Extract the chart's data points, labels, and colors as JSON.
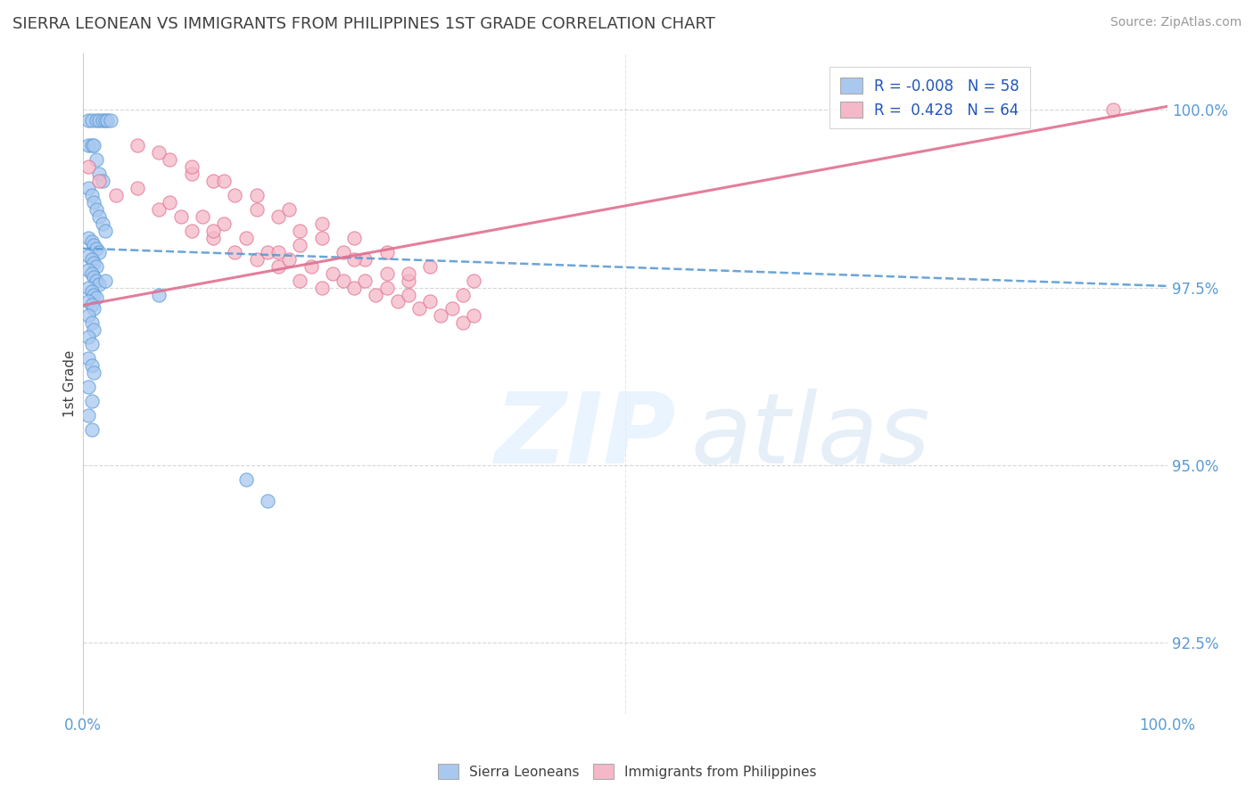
{
  "title": "SIERRA LEONEAN VS IMMIGRANTS FROM PHILIPPINES 1ST GRADE CORRELATION CHART",
  "source": "Source: ZipAtlas.com",
  "ylabel": "1st Grade",
  "xlim": [
    0.0,
    100.0
  ],
  "ylim": [
    91.5,
    100.8
  ],
  "yticks": [
    92.5,
    95.0,
    97.5,
    100.0
  ],
  "blue_R": "-0.008",
  "blue_N": "58",
  "pink_R": "0.428",
  "pink_N": "64",
  "blue_color": "#a8c8f0",
  "pink_color": "#f5b8c8",
  "blue_line_color": "#5b9bd5",
  "pink_line_color": "#e07090",
  "grid_color": "#cccccc",
  "title_color": "#404040",
  "axis_label_color": "#5b9bd5",
  "blue_line_y0": 98.05,
  "blue_line_y1": 97.52,
  "pink_line_y0": 97.25,
  "pink_line_y1": 100.05,
  "blue_scatter_x": [
    0.5,
    0.8,
    1.2,
    1.5,
    1.8,
    2.0,
    2.2,
    2.5,
    0.5,
    0.8,
    1.0,
    1.2,
    1.5,
    1.8,
    0.5,
    0.8,
    1.0,
    1.2,
    1.5,
    1.8,
    2.0,
    0.5,
    0.8,
    1.0,
    1.2,
    1.5,
    0.5,
    0.8,
    1.0,
    1.2,
    0.5,
    0.8,
    1.0,
    1.2,
    1.5,
    0.5,
    0.8,
    1.0,
    1.2,
    0.5,
    0.8,
    1.0,
    0.5,
    0.8,
    1.0,
    0.5,
    0.8,
    0.5,
    0.8,
    1.0,
    0.5,
    0.8,
    0.5,
    0.8,
    2.0,
    7.0,
    15.0,
    17.0
  ],
  "blue_scatter_y": [
    99.85,
    99.85,
    99.85,
    99.85,
    99.85,
    99.85,
    99.85,
    99.85,
    99.5,
    99.5,
    99.5,
    99.3,
    99.1,
    99.0,
    98.9,
    98.8,
    98.7,
    98.6,
    98.5,
    98.4,
    98.3,
    98.2,
    98.15,
    98.1,
    98.05,
    98.0,
    97.95,
    97.9,
    97.85,
    97.8,
    97.75,
    97.7,
    97.65,
    97.6,
    97.55,
    97.5,
    97.45,
    97.4,
    97.35,
    97.3,
    97.25,
    97.2,
    97.1,
    97.0,
    96.9,
    96.8,
    96.7,
    96.5,
    96.4,
    96.3,
    96.1,
    95.9,
    95.7,
    95.5,
    97.6,
    97.4,
    94.8,
    94.5
  ],
  "pink_scatter_x": [
    0.5,
    1.5,
    3.0,
    5.0,
    7.0,
    8.0,
    9.0,
    10.0,
    11.0,
    12.0,
    13.0,
    14.0,
    15.0,
    16.0,
    17.0,
    18.0,
    19.0,
    20.0,
    21.0,
    22.0,
    23.0,
    24.0,
    25.0,
    26.0,
    27.0,
    28.0,
    29.0,
    30.0,
    31.0,
    32.0,
    33.0,
    34.0,
    35.0,
    36.0,
    5.0,
    8.0,
    10.0,
    12.0,
    14.0,
    16.0,
    18.0,
    20.0,
    22.0,
    24.0,
    26.0,
    28.0,
    30.0,
    35.0,
    7.0,
    10.0,
    13.0,
    16.0,
    19.0,
    22.0,
    25.0,
    28.0,
    32.0,
    36.0,
    20.0,
    25.0,
    30.0,
    95.0,
    12.0,
    18.0
  ],
  "pink_scatter_y": [
    99.2,
    99.0,
    98.8,
    98.9,
    98.6,
    98.7,
    98.5,
    98.3,
    98.5,
    98.2,
    98.4,
    98.0,
    98.2,
    97.9,
    98.0,
    97.8,
    97.9,
    97.6,
    97.8,
    97.5,
    97.7,
    97.6,
    97.5,
    97.6,
    97.4,
    97.5,
    97.3,
    97.4,
    97.2,
    97.3,
    97.1,
    97.2,
    97.0,
    97.1,
    99.5,
    99.3,
    99.1,
    99.0,
    98.8,
    98.6,
    98.5,
    98.3,
    98.2,
    98.0,
    97.9,
    97.7,
    97.6,
    97.4,
    99.4,
    99.2,
    99.0,
    98.8,
    98.6,
    98.4,
    98.2,
    98.0,
    97.8,
    97.6,
    98.1,
    97.9,
    97.7,
    100.0,
    98.3,
    98.0
  ]
}
